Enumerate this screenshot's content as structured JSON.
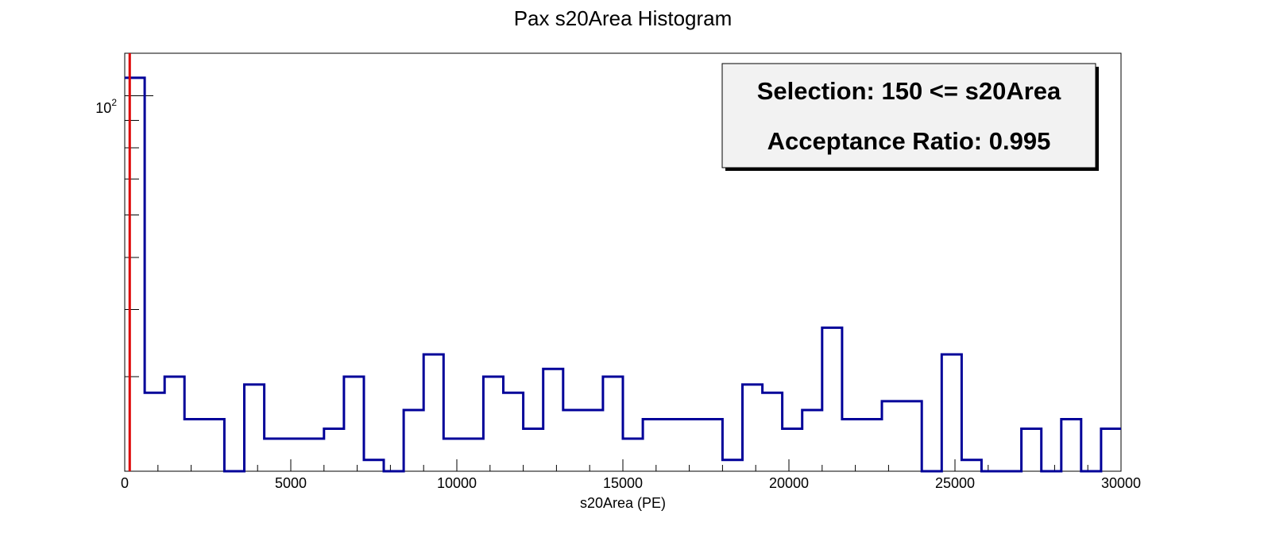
{
  "chart_data": {
    "type": "histogram",
    "title": "Pax s20Area Histogram",
    "xlabel": "s20Area (PE)",
    "ylabel": "",
    "xlim": [
      0,
      30000
    ],
    "ylog": true,
    "ylim": [
      20,
      120
    ],
    "x_ticks": [
      0,
      5000,
      10000,
      15000,
      20000,
      25000,
      30000
    ],
    "x_tick_labels": [
      "0",
      "5000",
      "10000",
      "15000",
      "20000",
      "25000",
      "30000"
    ],
    "y_tick_label": {
      "base": "10",
      "exponent": "2"
    },
    "bin_width": 600,
    "bin_start": 0,
    "bin_counts": [
      108,
      28,
      30,
      25,
      25,
      20,
      29,
      23,
      23,
      23,
      24,
      30,
      21,
      20,
      26,
      33,
      23,
      23,
      30,
      28,
      24,
      31,
      26,
      26,
      30,
      23,
      25,
      25,
      25,
      25,
      21,
      29,
      28,
      24,
      26,
      37,
      25,
      25,
      27,
      27,
      20,
      33,
      21,
      20,
      20,
      24,
      20,
      25,
      20,
      24
    ],
    "selection_cut": 150,
    "line_color": "#000099",
    "cut_color": "#dd0000",
    "stats_box": {
      "line1": "Selection: 150 <= s20Area",
      "line2": "Acceptance Ratio: 0.995"
    },
    "grid": false,
    "legend": "none"
  }
}
